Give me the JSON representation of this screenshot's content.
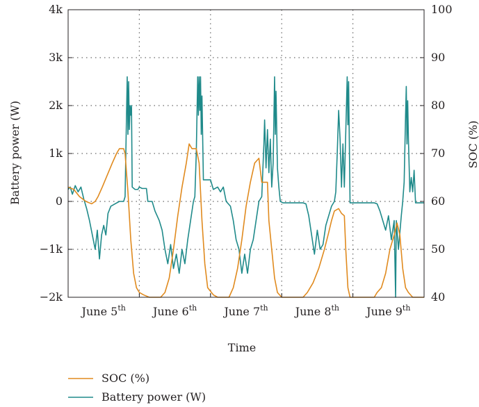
{
  "chart_data": {
    "type": "line",
    "x_axis": {
      "label": "Time",
      "categories": [
        "June 5",
        "June 6",
        "June 7",
        "June 8",
        "June 9"
      ],
      "category_sup": "th",
      "divider_positions_days": [
        1,
        2,
        3,
        4
      ],
      "range_days": [
        0,
        5
      ]
    },
    "y_left": {
      "label": "Battery power (W)",
      "ylim": [
        -2000,
        4000
      ],
      "ticks": [
        -2000,
        -1000,
        0,
        1000,
        2000,
        3000,
        4000
      ],
      "tick_labels": [
        "−2k",
        "−1k",
        "0",
        "1k",
        "2k",
        "3k",
        "4k"
      ]
    },
    "y_right": {
      "label": "SOC (%)",
      "ylim": [
        40,
        100
      ],
      "ticks": [
        40,
        50,
        60,
        70,
        80,
        90,
        100
      ],
      "tick_labels": [
        "40",
        "50",
        "60",
        "70",
        "80",
        "90",
        "100"
      ]
    },
    "grid": "dotted",
    "legend_position": "bottom-left",
    "series": [
      {
        "name": "SOC (%)",
        "axis": "right",
        "color": "#e08a1e",
        "points": [
          [
            0.0,
            63
          ],
          [
            0.08,
            62.5
          ],
          [
            0.16,
            61
          ],
          [
            0.25,
            60
          ],
          [
            0.33,
            59.5
          ],
          [
            0.38,
            60
          ],
          [
            0.42,
            61
          ],
          [
            0.48,
            63
          ],
          [
            0.55,
            65.5
          ],
          [
            0.62,
            68
          ],
          [
            0.68,
            70
          ],
          [
            0.72,
            71
          ],
          [
            0.78,
            71
          ],
          [
            0.8,
            70
          ],
          [
            0.84,
            62
          ],
          [
            0.88,
            52
          ],
          [
            0.92,
            45
          ],
          [
            0.96,
            42
          ],
          [
            1.0,
            41
          ],
          [
            1.06,
            40.5
          ],
          [
            1.14,
            40
          ],
          [
            1.3,
            40
          ],
          [
            1.36,
            41
          ],
          [
            1.42,
            44
          ],
          [
            1.48,
            50
          ],
          [
            1.54,
            57
          ],
          [
            1.6,
            63
          ],
          [
            1.66,
            68
          ],
          [
            1.7,
            72
          ],
          [
            1.74,
            71
          ],
          [
            1.8,
            71
          ],
          [
            1.84,
            68
          ],
          [
            1.88,
            56
          ],
          [
            1.92,
            47
          ],
          [
            1.96,
            42
          ],
          [
            2.04,
            40.5
          ],
          [
            2.1,
            40
          ],
          [
            2.26,
            40
          ],
          [
            2.32,
            42
          ],
          [
            2.38,
            46
          ],
          [
            2.44,
            52
          ],
          [
            2.5,
            59
          ],
          [
            2.56,
            64
          ],
          [
            2.62,
            68
          ],
          [
            2.68,
            69
          ],
          [
            2.72,
            64
          ],
          [
            2.8,
            64
          ],
          [
            2.82,
            56
          ],
          [
            2.86,
            50
          ],
          [
            2.9,
            44
          ],
          [
            2.94,
            41
          ],
          [
            3.0,
            40
          ],
          [
            3.3,
            40
          ],
          [
            3.36,
            41
          ],
          [
            3.44,
            43
          ],
          [
            3.52,
            46
          ],
          [
            3.6,
            50
          ],
          [
            3.66,
            53.5
          ],
          [
            3.7,
            56
          ],
          [
            3.74,
            58
          ],
          [
            3.8,
            58.5
          ],
          [
            3.84,
            57.5
          ],
          [
            3.88,
            57
          ],
          [
            3.9,
            50
          ],
          [
            3.93,
            42
          ],
          [
            3.96,
            40
          ],
          [
            4.3,
            40
          ],
          [
            4.34,
            41
          ],
          [
            4.4,
            42
          ],
          [
            4.46,
            45
          ],
          [
            4.52,
            50
          ],
          [
            4.58,
            53
          ],
          [
            4.62,
            55.5
          ],
          [
            4.66,
            53
          ],
          [
            4.7,
            46
          ],
          [
            4.74,
            42
          ],
          [
            4.78,
            41
          ],
          [
            4.84,
            40
          ],
          [
            5.0,
            40
          ]
        ]
      },
      {
        "name": "Battery power (W)",
        "axis": "left",
        "color": "#1f8a8a",
        "points": [
          [
            0.0,
            250
          ],
          [
            0.03,
            300
          ],
          [
            0.06,
            150
          ],
          [
            0.1,
            330
          ],
          [
            0.14,
            200
          ],
          [
            0.18,
            300
          ],
          [
            0.22,
            50
          ],
          [
            0.26,
            -150
          ],
          [
            0.3,
            -400
          ],
          [
            0.34,
            -700
          ],
          [
            0.38,
            -1000
          ],
          [
            0.41,
            -600
          ],
          [
            0.44,
            -1200
          ],
          [
            0.47,
            -700
          ],
          [
            0.5,
            -500
          ],
          [
            0.53,
            -700
          ],
          [
            0.56,
            -250
          ],
          [
            0.6,
            -100
          ],
          [
            0.66,
            -50
          ],
          [
            0.72,
            0
          ],
          [
            0.78,
            0
          ],
          [
            0.8,
            100
          ],
          [
            0.82,
            1800
          ],
          [
            0.83,
            2600
          ],
          [
            0.84,
            1400
          ],
          [
            0.85,
            2500
          ],
          [
            0.86,
            1500
          ],
          [
            0.87,
            2000
          ],
          [
            0.88,
            1800
          ],
          [
            0.89,
            2000
          ],
          [
            0.9,
            300
          ],
          [
            0.94,
            250
          ],
          [
            0.98,
            250
          ],
          [
            1.0,
            300
          ],
          [
            1.04,
            270
          ],
          [
            1.1,
            270
          ],
          [
            1.12,
            0
          ],
          [
            1.18,
            0
          ],
          [
            1.22,
            -200
          ],
          [
            1.28,
            -400
          ],
          [
            1.32,
            -600
          ],
          [
            1.36,
            -1000
          ],
          [
            1.4,
            -1300
          ],
          [
            1.44,
            -900
          ],
          [
            1.48,
            -1400
          ],
          [
            1.52,
            -1100
          ],
          [
            1.56,
            -1500
          ],
          [
            1.6,
            -1000
          ],
          [
            1.64,
            -1300
          ],
          [
            1.68,
            -800
          ],
          [
            1.72,
            -400
          ],
          [
            1.76,
            0
          ],
          [
            1.78,
            100
          ],
          [
            1.8,
            1000
          ],
          [
            1.82,
            2600
          ],
          [
            1.83,
            1800
          ],
          [
            1.84,
            2600
          ],
          [
            1.85,
            1900
          ],
          [
            1.86,
            2600
          ],
          [
            1.87,
            1400
          ],
          [
            1.88,
            2200
          ],
          [
            1.9,
            450
          ],
          [
            1.94,
            450
          ],
          [
            2.0,
            450
          ],
          [
            2.04,
            250
          ],
          [
            2.1,
            300
          ],
          [
            2.14,
            200
          ],
          [
            2.18,
            300
          ],
          [
            2.22,
            0
          ],
          [
            2.28,
            -100
          ],
          [
            2.32,
            -400
          ],
          [
            2.36,
            -800
          ],
          [
            2.4,
            -1000
          ],
          [
            2.44,
            -1500
          ],
          [
            2.48,
            -1100
          ],
          [
            2.52,
            -1500
          ],
          [
            2.56,
            -1000
          ],
          [
            2.6,
            -800
          ],
          [
            2.64,
            -400
          ],
          [
            2.68,
            0
          ],
          [
            2.72,
            100
          ],
          [
            2.75,
            1200
          ],
          [
            2.76,
            1700
          ],
          [
            2.78,
            700
          ],
          [
            2.8,
            1500
          ],
          [
            2.82,
            600
          ],
          [
            2.84,
            1300
          ],
          [
            2.86,
            300
          ],
          [
            2.88,
            800
          ],
          [
            2.9,
            2600
          ],
          [
            2.91,
            1400
          ],
          [
            2.92,
            2300
          ],
          [
            2.94,
            700
          ],
          [
            2.96,
            300
          ],
          [
            2.98,
            0
          ],
          [
            3.02,
            -30
          ],
          [
            3.3,
            -30
          ],
          [
            3.34,
            -50
          ],
          [
            3.38,
            -300
          ],
          [
            3.42,
            -700
          ],
          [
            3.46,
            -1100
          ],
          [
            3.5,
            -600
          ],
          [
            3.54,
            -1000
          ],
          [
            3.58,
            -900
          ],
          [
            3.62,
            -500
          ],
          [
            3.66,
            -300
          ],
          [
            3.7,
            -100
          ],
          [
            3.74,
            0
          ],
          [
            3.76,
            200
          ],
          [
            3.78,
            1000
          ],
          [
            3.8,
            1900
          ],
          [
            3.82,
            1300
          ],
          [
            3.84,
            300
          ],
          [
            3.86,
            1200
          ],
          [
            3.88,
            300
          ],
          [
            3.92,
            2600
          ],
          [
            3.93,
            1600
          ],
          [
            3.94,
            2500
          ],
          [
            3.96,
            -30
          ],
          [
            4.02,
            -30
          ],
          [
            4.3,
            -30
          ],
          [
            4.34,
            -50
          ],
          [
            4.38,
            -200
          ],
          [
            4.42,
            -400
          ],
          [
            4.46,
            -600
          ],
          [
            4.5,
            -300
          ],
          [
            4.54,
            -800
          ],
          [
            4.58,
            -400
          ],
          [
            4.6,
            -2000
          ],
          [
            4.61,
            -400
          ],
          [
            4.64,
            -1000
          ],
          [
            4.68,
            -300
          ],
          [
            4.7,
            0
          ],
          [
            4.72,
            400
          ],
          [
            4.74,
            1800
          ],
          [
            4.75,
            2400
          ],
          [
            4.76,
            1200
          ],
          [
            4.77,
            2100
          ],
          [
            4.78,
            1300
          ],
          [
            4.8,
            200
          ],
          [
            4.82,
            500
          ],
          [
            4.84,
            200
          ],
          [
            4.86,
            650
          ],
          [
            4.88,
            -30
          ],
          [
            5.0,
            -30
          ]
        ]
      }
    ]
  }
}
